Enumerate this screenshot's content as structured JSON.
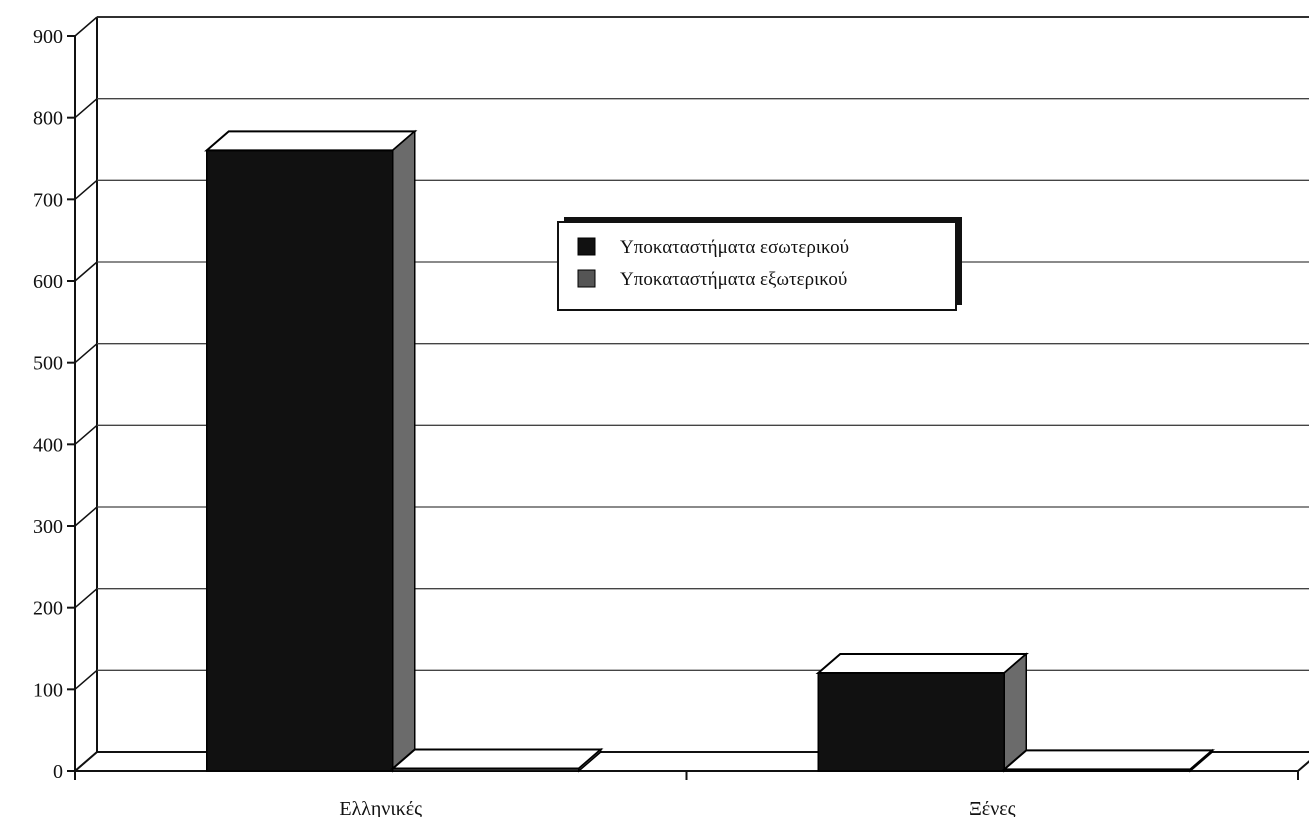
{
  "chart_data": {
    "type": "bar",
    "categories": [
      "Ελληνικές",
      "Ξένες"
    ],
    "series": [
      {
        "name": "Υποκαταστήματα εσωτερικού",
        "values": [
          760,
          120
        ],
        "color": "#111111"
      },
      {
        "name": "Υποκαταστήματα εξωτερικού",
        "values": [
          3,
          2
        ],
        "color": "#555555"
      }
    ],
    "ylim": [
      0,
      900
    ],
    "yticks": [
      0,
      100,
      200,
      300,
      400,
      500,
      600,
      700,
      800,
      900
    ],
    "grid": true,
    "legend_position": "center-right",
    "three_d": true,
    "title": "",
    "xlabel": "",
    "ylabel": ""
  }
}
